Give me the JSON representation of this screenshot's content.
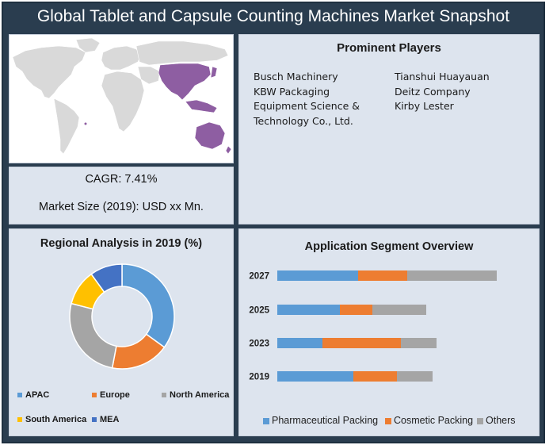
{
  "title": "Global Tablet and Capsule Counting Machines Market Snapshot",
  "players": {
    "title": "Prominent Players",
    "left": [
      "Busch Machinery",
      "KBW Packaging",
      "Equipment Science &",
      "Technology Co., Ltd."
    ],
    "right": [
      "Tianshui Huayauan",
      "Deitz Company",
      "Kirby Lester"
    ]
  },
  "stats": {
    "cagr": "CAGR: 7.41%",
    "market_size": "Market Size (2019): USD xx Mn."
  },
  "colors": {
    "blue": "#5b9bd5",
    "orange": "#ed7d31",
    "gray": "#a5a5a5",
    "yellow": "#ffc000",
    "navy": "#4472c4",
    "map_land": "#d9d9d9",
    "map_highlight": "#8e5ea2"
  },
  "chart_data": [
    {
      "type": "donut",
      "title": "Regional Analysis in 2019 (%)",
      "categories": [
        "APAC",
        "Europe",
        "North America",
        "South America",
        "MEA"
      ],
      "values": [
        35,
        18,
        26,
        11,
        10
      ],
      "legend": "bottom"
    },
    {
      "type": "bar",
      "orientation": "horizontal",
      "stacked": true,
      "title": "Application Segment Overview",
      "categories": [
        "2027",
        "2025",
        "2023",
        "2019"
      ],
      "series": [
        {
          "name": "Pharmaceutical Packing",
          "values": [
            102,
            79,
            57,
            96
          ]
        },
        {
          "name": "Cosmetic Packing",
          "values": [
            62,
            41,
            99,
            55
          ]
        },
        {
          "name": "Others",
          "values": [
            113,
            68,
            45,
            45
          ]
        }
      ],
      "legend": "bottom"
    }
  ]
}
